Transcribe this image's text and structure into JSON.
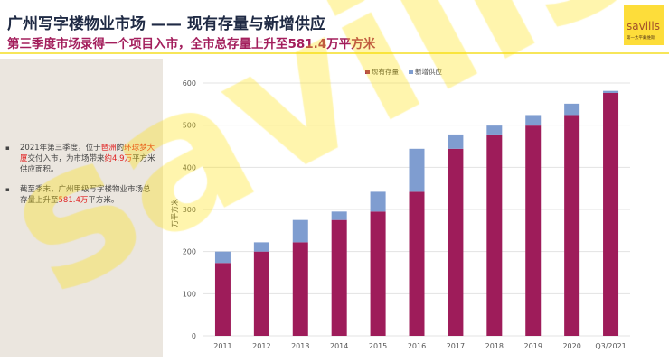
{
  "header": {
    "title": "广州写字楼物业市场 —— 现有存量与新增供应",
    "subtitle": "第三季度市场录得一个项目入市，全市总存量上升至581.4万平方米"
  },
  "logo": {
    "wordmark": "savills",
    "chinese": "第一太平戴维斯",
    "color": "#fddd3a"
  },
  "watermark": "savills",
  "bullets": [
    {
      "parts": [
        "2021年第三季度，位于",
        "琶洲",
        "的",
        "环球梦大厦",
        "交付入市，为市场带来",
        "约4.9万",
        "平方米供应面积。"
      ]
    },
    {
      "parts": [
        "截至季末，广州甲级写字楼物业市场总存量上升至",
        "581.4万",
        "平方米。"
      ]
    }
  ],
  "chart_data": {
    "type": "bar",
    "stacked": true,
    "categories": [
      "2011",
      "2012",
      "2013",
      "2014",
      "2015",
      "2016",
      "2017",
      "2018",
      "2019",
      "2020",
      "Q3/2021"
    ],
    "series": [
      {
        "name": "现有存量",
        "color": "#9e1c5a",
        "values": [
          173,
          200,
          222,
          275,
          295,
          342,
          444,
          478,
          499,
          524,
          576.5
        ]
      },
      {
        "name": "新增供应",
        "color": "#7f9dd0",
        "values": [
          27,
          22,
          53,
          20,
          47,
          102,
          34,
          21,
          25,
          27,
          4.9
        ]
      }
    ],
    "ylabel": "万平方米",
    "ylim": [
      0,
      600
    ],
    "yticks": [
      "0",
      "100",
      "200",
      "300",
      "400",
      "500",
      "600"
    ],
    "grid": true,
    "legend": "top-center"
  }
}
